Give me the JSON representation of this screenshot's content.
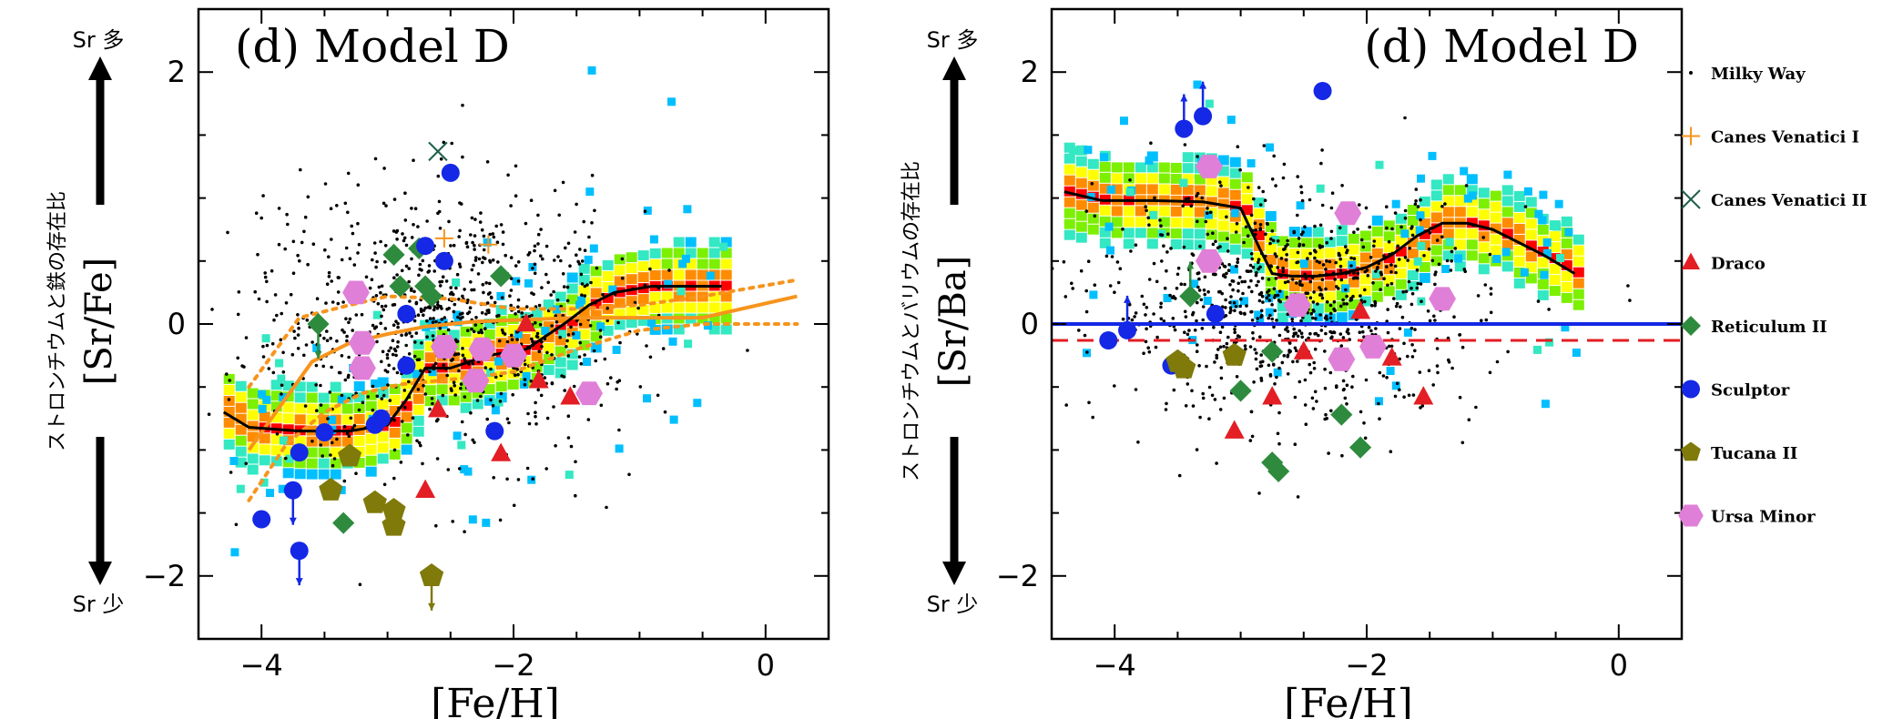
{
  "chart_data": [
    {
      "type": "scatter",
      "panel_label": "(d) Model D",
      "xlabel": "[Fe/H]",
      "ylabel": "[Sr/Fe]",
      "ylabel_jp": "ストロンチウムと鉄の存在比",
      "arrow_up_label": "Sr 多",
      "arrow_down_label": "Sr 少",
      "xlim": [
        -4.5,
        0.5
      ],
      "ylim": [
        -2.5,
        2.5
      ],
      "xticks": [
        -4,
        -2,
        0
      ],
      "xtick_labels": [
        "−4",
        "−2",
        "0"
      ],
      "yticks": [
        -2,
        0,
        2
      ],
      "ytick_labels": [
        "−2",
        "0",
        "2"
      ],
      "model_line": {
        "x": [
          -4.3,
          -4.1,
          -3.7,
          -3.3,
          -3.0,
          -2.85,
          -2.7,
          -2.5,
          -2.2,
          -1.9,
          -1.6,
          -1.4,
          -1.2,
          -0.9,
          -0.6,
          -0.35
        ],
        "y": [
          -0.7,
          -0.82,
          -0.85,
          -0.85,
          -0.8,
          -0.6,
          -0.35,
          -0.35,
          -0.25,
          -0.2,
          0.0,
          0.15,
          0.25,
          0.3,
          0.3,
          0.3
        ]
      },
      "orange_median": {
        "x": [
          -4.1,
          -3.6,
          -3.3,
          -3.0,
          -2.7,
          -2.3,
          -2.0,
          -1.5,
          -0.5,
          0.25
        ],
        "y": [
          -1.0,
          -0.3,
          -0.15,
          -0.08,
          -0.02,
          0.02,
          0.03,
          0.05,
          0.05,
          0.22
        ]
      },
      "orange_upper": {
        "x": [
          -4.1,
          -3.7,
          -3.3,
          -3.0,
          -2.5,
          -2.0,
          -1.5,
          -1.0,
          -0.5,
          0.25
        ],
        "y": [
          -0.5,
          0.05,
          0.15,
          0.22,
          0.2,
          0.12,
          0.12,
          0.15,
          0.22,
          0.35
        ]
      },
      "orange_lower": {
        "x": [
          -4.1,
          -3.8,
          -3.5,
          -3.2,
          -2.9,
          -2.6,
          -2.3,
          -2.0,
          -1.5,
          -1.0,
          -0.5,
          0.25
        ],
        "y": [
          -1.4,
          -0.95,
          -0.7,
          -0.55,
          -0.48,
          -0.45,
          -0.42,
          -0.38,
          -0.2,
          -0.05,
          0.0,
          0.0
        ]
      },
      "stars": {
        "Canes Venatici I": [
          [
            -2.55,
            0.68
          ],
          [
            -2.2,
            0.63
          ]
        ],
        "Canes Venatici II": [
          [
            -2.6,
            1.37
          ]
        ],
        "Draco": [
          [
            -2.6,
            -0.68
          ],
          [
            -2.7,
            -1.32
          ],
          [
            -2.1,
            -1.03
          ],
          [
            -1.8,
            -0.45
          ],
          [
            -1.55,
            -0.58
          ],
          [
            -1.9,
            -0.0
          ]
        ],
        "Reticulum II": [
          [
            -3.55,
            -0.0
          ],
          [
            -2.95,
            0.55
          ],
          [
            -2.75,
            0.6
          ],
          [
            -2.7,
            0.3
          ],
          [
            -2.9,
            0.3
          ],
          [
            -2.65,
            0.22
          ],
          [
            -2.1,
            0.38
          ],
          [
            -3.35,
            -1.58
          ]
        ],
        "Sculptor": [
          [
            -2.5,
            1.2
          ],
          [
            -2.7,
            0.62
          ],
          [
            -2.55,
            0.5
          ],
          [
            -2.85,
            0.08
          ],
          [
            -2.85,
            -0.33
          ],
          [
            -3.1,
            -0.8
          ],
          [
            -3.05,
            -0.75
          ],
          [
            -3.5,
            -0.86
          ],
          [
            -3.7,
            -1.02
          ],
          [
            -2.15,
            -0.85
          ],
          [
            -4.0,
            -1.55
          ],
          [
            -3.75,
            -1.32
          ],
          [
            -3.7,
            -1.8
          ]
        ],
        "Tucana II": [
          [
            -3.3,
            -1.05
          ],
          [
            -3.45,
            -1.32
          ],
          [
            -3.1,
            -1.42
          ],
          [
            -2.95,
            -1.48
          ],
          [
            -2.95,
            -1.6
          ],
          [
            -2.65,
            -2.0
          ]
        ],
        "Ursa Minor": [
          [
            -3.25,
            0.25
          ],
          [
            -3.2,
            -0.15
          ],
          [
            -3.2,
            -0.35
          ],
          [
            -2.55,
            -0.18
          ],
          [
            -2.25,
            -0.2
          ],
          [
            -2.0,
            -0.25
          ],
          [
            -2.3,
            -0.45
          ],
          [
            -1.4,
            -0.55
          ]
        ]
      },
      "upper_limits": [
        [
          -3.55,
          -0.0,
          "Reticulum II"
        ],
        [
          -3.75,
          -1.32,
          "Sculptor"
        ],
        [
          -3.7,
          -1.8,
          "Sculptor"
        ],
        [
          -2.65,
          -2.0,
          "Tucana II"
        ]
      ]
    },
    {
      "type": "scatter",
      "panel_label": "(d) Model D",
      "xlabel": "[Fe/H]",
      "ylabel": "[Sr/Ba]",
      "ylabel_jp": "ストロンチウムとバリウムの存在比",
      "arrow_up_label": "Sr 多",
      "arrow_down_label": "Sr 少",
      "xlim": [
        -4.5,
        0.5
      ],
      "ylim": [
        -2.5,
        2.5
      ],
      "xticks": [
        -4,
        -2,
        0
      ],
      "xtick_labels": [
        "−4",
        "−2",
        "0"
      ],
      "yticks": [
        -2,
        0,
        2
      ],
      "ytick_labels": [
        "−2",
        "0",
        "2"
      ],
      "hline_solar": 0,
      "hline_dashed": -0.13,
      "model_line": {
        "x": [
          -4.4,
          -4.1,
          -3.7,
          -3.3,
          -3.0,
          -2.85,
          -2.75,
          -2.6,
          -2.4,
          -2.2,
          -2.0,
          -1.8,
          -1.6,
          -1.4,
          -1.2,
          -1.0,
          -0.8,
          -0.6,
          -0.35
        ],
        "y": [
          1.05,
          0.98,
          0.98,
          0.97,
          0.92,
          0.6,
          0.4,
          0.38,
          0.38,
          0.4,
          0.45,
          0.55,
          0.7,
          0.8,
          0.8,
          0.75,
          0.65,
          0.55,
          0.4
        ]
      },
      "stars": {
        "Draco": [
          [
            -3.05,
            -0.85
          ],
          [
            -2.75,
            -0.58
          ],
          [
            -2.5,
            -0.22
          ],
          [
            -2.05,
            0.1
          ],
          [
            -1.8,
            -0.27
          ],
          [
            -1.55,
            -0.58
          ]
        ],
        "Reticulum II": [
          [
            -3.4,
            0.22
          ],
          [
            -3.0,
            -0.53
          ],
          [
            -2.75,
            -0.22
          ],
          [
            -2.75,
            -1.1
          ],
          [
            -2.7,
            -1.17
          ],
          [
            -2.2,
            -0.72
          ],
          [
            -2.05,
            -0.98
          ]
        ],
        "Sculptor": [
          [
            -3.45,
            1.55
          ],
          [
            -3.3,
            1.65
          ],
          [
            -2.35,
            1.85
          ],
          [
            -3.9,
            -0.05
          ],
          [
            -4.05,
            -0.13
          ],
          [
            -3.55,
            -0.33
          ],
          [
            -3.2,
            0.08
          ]
        ],
        "Tucana II": [
          [
            -3.5,
            -0.3
          ],
          [
            -3.45,
            -0.35
          ],
          [
            -3.05,
            -0.25
          ]
        ],
        "Ursa Minor": [
          [
            -3.25,
            1.25
          ],
          [
            -3.25,
            0.5
          ],
          [
            -2.55,
            0.15
          ],
          [
            -2.15,
            0.88
          ],
          [
            -2.2,
            -0.28
          ],
          [
            -1.95,
            -0.18
          ],
          [
            -1.4,
            0.2
          ]
        ]
      },
      "lower_limits": [
        [
          -3.45,
          1.55,
          "Sculptor"
        ],
        [
          -3.3,
          1.65,
          "Sculptor"
        ],
        [
          -3.9,
          -0.05,
          "Sculptor"
        ],
        [
          -3.4,
          0.22,
          "Reticulum II"
        ]
      ]
    }
  ],
  "legend": [
    {
      "label": "Milky Way",
      "marker": "dot",
      "color": "#000000"
    },
    {
      "label": "Canes Venatici I",
      "marker": "plus",
      "color": "#f7941d"
    },
    {
      "label": "Canes Venatici II",
      "marker": "cross",
      "color": "#1f5f4a"
    },
    {
      "label": "Draco",
      "marker": "triangle",
      "color": "#e31e24"
    },
    {
      "label": "Reticulum II",
      "marker": "diamond",
      "color": "#2e8b3e"
    },
    {
      "label": "Sculptor",
      "marker": "circle",
      "color": "#1428e6"
    },
    {
      "label": "Tucana II",
      "marker": "pentagon",
      "color": "#7f7a0a"
    },
    {
      "label": "Ursa Minor",
      "marker": "hexagon",
      "color": "#e07fd8"
    }
  ]
}
